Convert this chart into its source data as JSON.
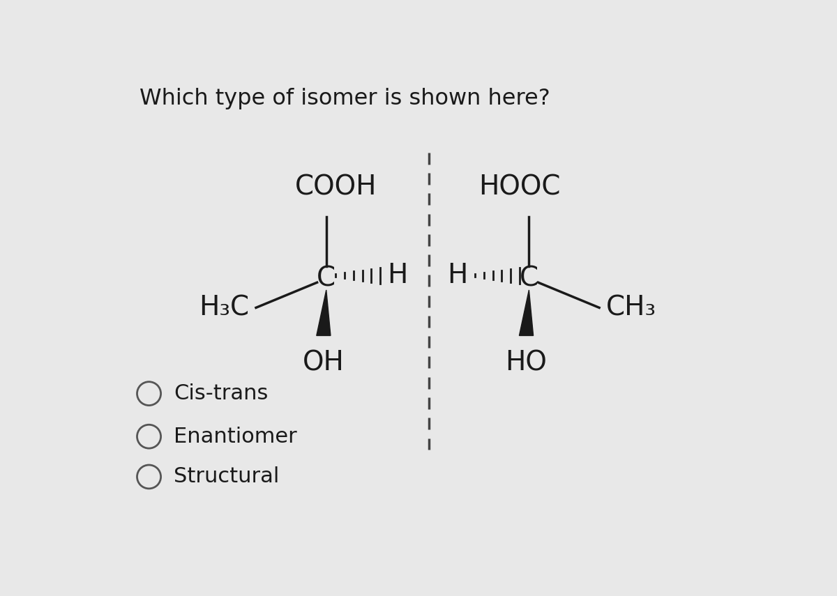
{
  "title": "Which type of isomer is shown here?",
  "title_fontsize": 23,
  "bg_color": "#e8e8e8",
  "text_color": "#1a1a1a",
  "options": [
    "Cis-trans",
    "Enantiomer",
    "Structural"
  ],
  "option_fontsize": 22,
  "mol_fontsize": 28
}
